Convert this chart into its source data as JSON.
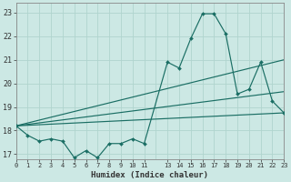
{
  "xlabel": "Humidex (Indice chaleur)",
  "background_color": "#cce8e4",
  "grid_color": "#b0d4ce",
  "line_color": "#1a6e64",
  "xlim": [
    0,
    23
  ],
  "ylim": [
    16.8,
    23.4
  ],
  "xticks": [
    0,
    1,
    2,
    3,
    4,
    5,
    6,
    7,
    8,
    9,
    10,
    11,
    13,
    14,
    15,
    16,
    17,
    18,
    19,
    20,
    21,
    22,
    23
  ],
  "yticks": [
    17,
    18,
    19,
    20,
    21,
    22,
    23
  ],
  "main_x": [
    0,
    1,
    2,
    3,
    4,
    5,
    6,
    7,
    8,
    9,
    10,
    11,
    13,
    14,
    15,
    16,
    17,
    18,
    19,
    20,
    21,
    22,
    23
  ],
  "main_y": [
    18.2,
    17.8,
    17.55,
    17.65,
    17.55,
    16.85,
    17.15,
    16.85,
    17.45,
    17.45,
    17.65,
    17.45,
    20.9,
    20.65,
    21.9,
    22.95,
    22.95,
    22.1,
    19.55,
    19.75,
    20.9,
    19.25,
    18.75
  ],
  "trend1_x": [
    0,
    23
  ],
  "trend1_y": [
    18.2,
    21.0
  ],
  "trend2_x": [
    0,
    23
  ],
  "trend2_y": [
    18.2,
    19.65
  ],
  "trend3_x": [
    0,
    23
  ],
  "trend3_y": [
    18.2,
    18.75
  ]
}
